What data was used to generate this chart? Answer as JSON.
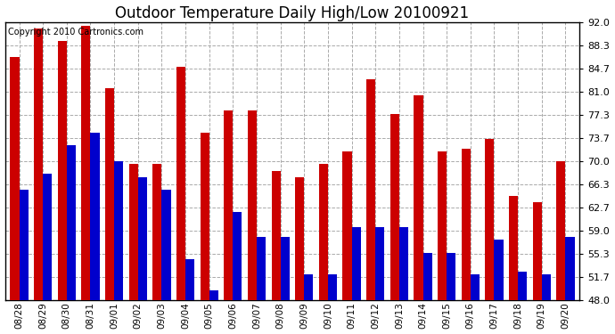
{
  "title": "Outdoor Temperature Daily High/Low 20100921",
  "copyright": "Copyright 2010 Cartronics.com",
  "dates": [
    "08/28",
    "08/29",
    "08/30",
    "08/31",
    "09/01",
    "09/02",
    "09/03",
    "09/04",
    "09/05",
    "09/06",
    "09/07",
    "09/08",
    "09/09",
    "09/10",
    "09/11",
    "09/12",
    "09/13",
    "09/14",
    "09/15",
    "09/16",
    "09/17",
    "09/18",
    "09/19",
    "09/20"
  ],
  "highs": [
    86.5,
    91.0,
    89.0,
    91.5,
    81.5,
    69.5,
    69.5,
    85.0,
    74.5,
    78.0,
    78.0,
    68.5,
    67.5,
    69.5,
    71.5,
    83.0,
    77.5,
    80.5,
    71.5,
    72.0,
    73.5,
    64.5,
    63.5,
    70.0
  ],
  "lows": [
    65.5,
    68.0,
    72.5,
    74.5,
    70.0,
    67.5,
    65.5,
    54.5,
    49.5,
    62.0,
    58.0,
    58.0,
    52.0,
    52.0,
    59.5,
    59.5,
    59.5,
    55.5,
    55.5,
    52.0,
    57.5,
    52.5,
    52.0,
    58.0
  ],
  "high_color": "#cc0000",
  "low_color": "#0000cc",
  "bg_color": "#ffffff",
  "grid_color": "#aaaaaa",
  "yticks": [
    48.0,
    51.7,
    55.3,
    59.0,
    62.7,
    66.3,
    70.0,
    73.7,
    77.3,
    81.0,
    84.7,
    88.3,
    92.0
  ],
  "ymin": 48.0,
  "ymax": 92.0,
  "title_fontsize": 12,
  "copyright_fontsize": 7,
  "bar_bottom": 48.0
}
